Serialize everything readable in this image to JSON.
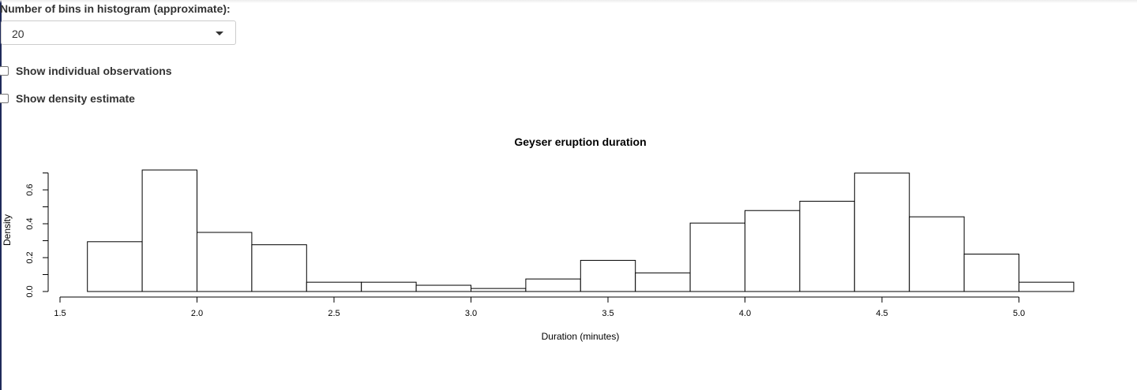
{
  "controls": {
    "bins_label": "Number of bins in histogram (approximate):",
    "bins_selected": "20",
    "show_observations_label": "Show individual observations",
    "show_density_label": "Show density estimate",
    "show_observations_checked": false,
    "show_density_checked": false
  },
  "colors": {
    "bar_fill": "#ffffff",
    "bar_stroke": "#000000",
    "accent_left_rule": "#1f2a5a"
  },
  "chart_data": {
    "type": "bar",
    "title": "Geyser eruption duration",
    "xlabel": "Duration (minutes)",
    "ylabel": "Density",
    "xlim": [
      1.5,
      5.2
    ],
    "ylim": [
      0,
      0.7
    ],
    "x_ticks": [
      "1.5",
      "2.0",
      "2.5",
      "3.0",
      "3.5",
      "4.0",
      "4.5",
      "5.0"
    ],
    "y_ticks": [
      "0.0",
      "0.2",
      "0.4",
      "0.6"
    ],
    "bin_width": 0.2,
    "bin_starts": [
      1.6,
      1.8,
      2.0,
      2.2,
      2.4,
      2.6,
      2.8,
      3.0,
      3.2,
      3.4,
      3.6,
      3.8,
      4.0,
      4.2,
      4.4,
      4.6,
      4.8,
      5.0
    ],
    "values": [
      0.294,
      0.717,
      0.349,
      0.276,
      0.055,
      0.055,
      0.037,
      0.018,
      0.074,
      0.184,
      0.11,
      0.404,
      0.478,
      0.533,
      0.699,
      0.441,
      0.221,
      0.055
    ],
    "grid": false,
    "legend": "none"
  }
}
